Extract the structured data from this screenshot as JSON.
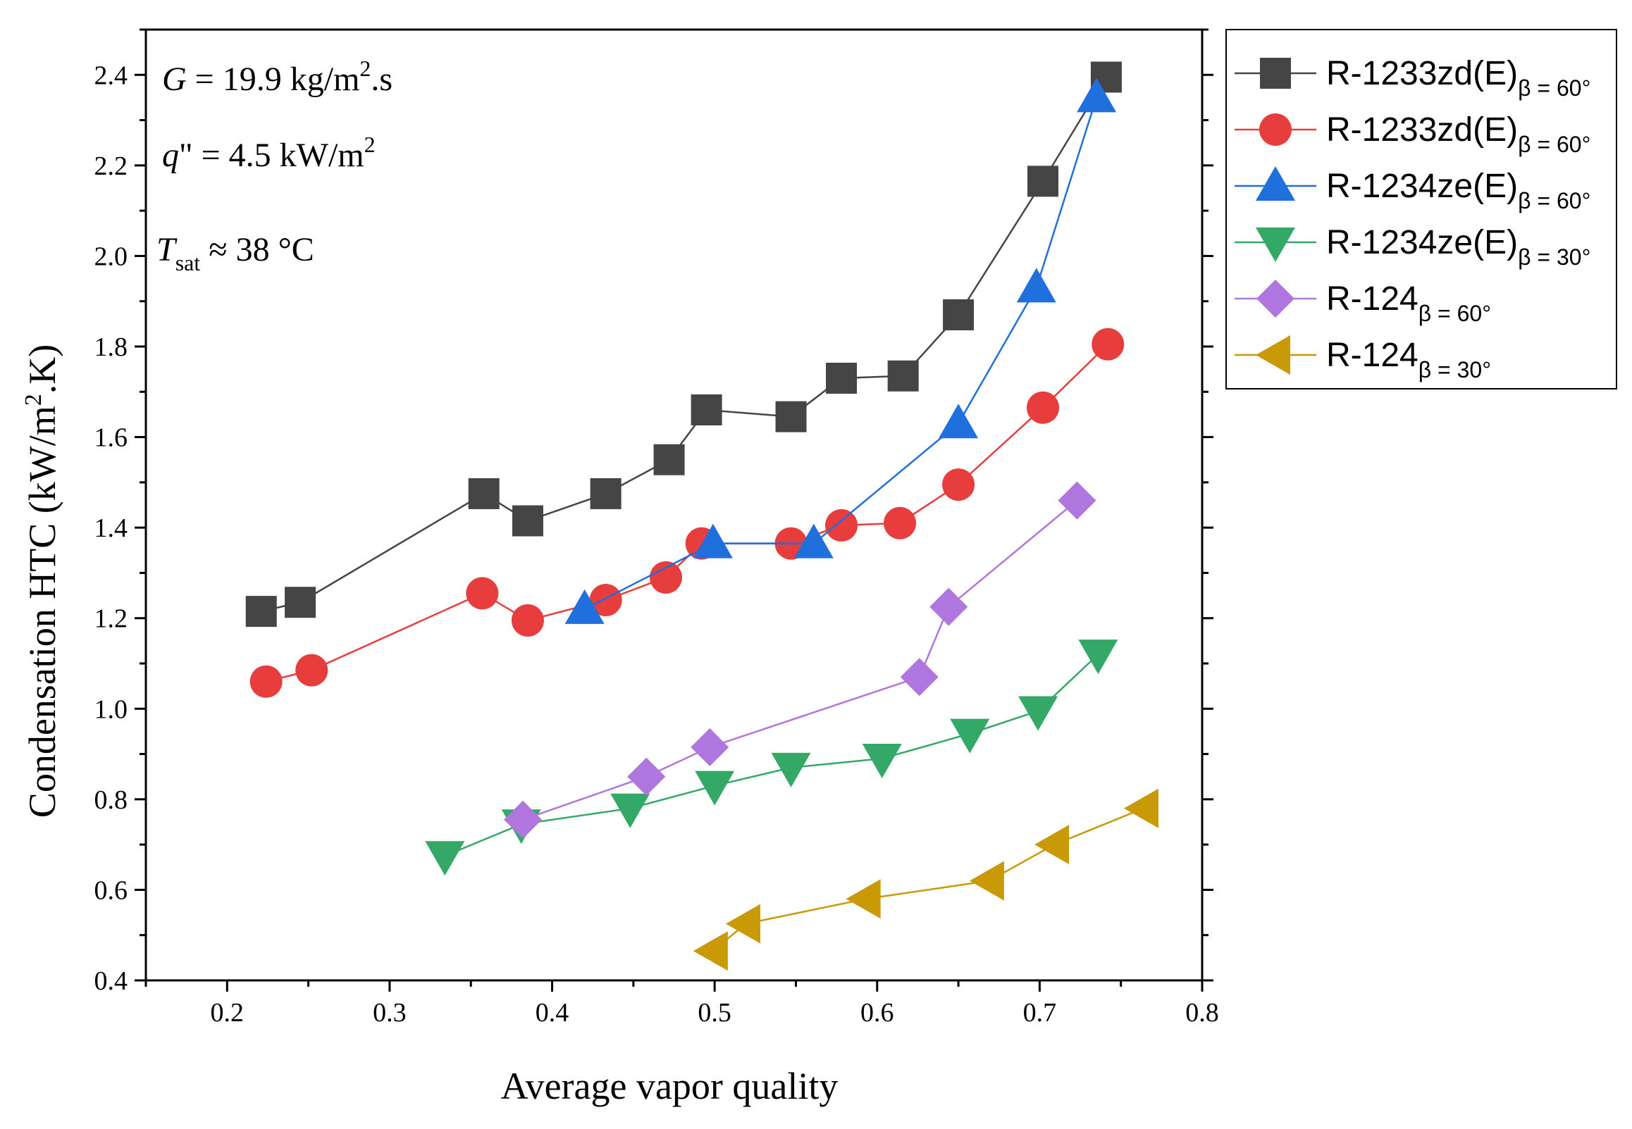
{
  "chart_data": {
    "type": "line",
    "xlabel": "Average vapor quality",
    "ylabel": "Condensation HTC (kW/m",
    "ylabel_sup": "2",
    "ylabel_end": ".K)",
    "xlim": [
      0.15,
      0.8
    ],
    "ylim": [
      0.4,
      2.5
    ],
    "xticks": [
      "0.2",
      "0.3",
      "0.4",
      "0.5",
      "0.6",
      "0.7",
      "0.8"
    ],
    "yticks": [
      "0.4",
      "0.6",
      "0.8",
      "1.0",
      "1.2",
      "1.4",
      "1.6",
      "1.8",
      "2.0",
      "2.2",
      "2.4"
    ],
    "annotations": {
      "g_var": "G",
      "g_rest": " = 19.9 kg/m",
      "g_sup": "2",
      "g_end": ".s",
      "q_var": "q",
      "q_rest": "\" = 4.5 kW/m",
      "q_sup": "2",
      "t_var": "T",
      "t_sub": "sat",
      "t_rest": " ≈ 38  °C"
    },
    "series": [
      {
        "name": "R-1233zd(E)",
        "sub": "β = 60°",
        "color": "#454545",
        "marker": "square",
        "x": [
          0.221,
          0.245,
          0.358,
          0.385,
          0.433,
          0.472,
          0.495,
          0.547,
          0.578,
          0.616,
          0.65,
          0.702,
          0.741
        ],
        "y": [
          1.215,
          1.235,
          1.475,
          1.415,
          1.475,
          1.55,
          1.66,
          1.645,
          1.73,
          1.735,
          1.87,
          2.165,
          2.395
        ]
      },
      {
        "name": "R-1233zd(E)",
        "sub": "β = 60°",
        "color": "#e83d3d",
        "marker": "circle",
        "x": [
          0.224,
          0.252,
          0.357,
          0.385,
          0.433,
          0.47,
          0.492,
          0.547,
          0.578,
          0.614,
          0.65,
          0.702,
          0.742
        ],
        "y": [
          1.06,
          1.085,
          1.255,
          1.195,
          1.24,
          1.29,
          1.365,
          1.365,
          1.405,
          1.41,
          1.495,
          1.665,
          1.805
        ]
      },
      {
        "name": "R-1234ze(E)",
        "sub": "β = 60°",
        "color": "#1f6fdc",
        "marker": "triangle-up",
        "x": [
          0.42,
          0.499,
          0.561,
          0.65,
          0.698,
          0.735
        ],
        "y": [
          1.22,
          1.365,
          1.365,
          1.63,
          1.93,
          2.35
        ]
      },
      {
        "name": "R-1234ze(E)",
        "sub": "β = 30°",
        "color": "#34a866",
        "marker": "triangle-down",
        "x": [
          0.334,
          0.381,
          0.448,
          0.5,
          0.547,
          0.603,
          0.657,
          0.699,
          0.736
        ],
        "y": [
          0.675,
          0.745,
          0.78,
          0.83,
          0.87,
          0.89,
          0.945,
          0.995,
          1.12
        ]
      },
      {
        "name": "R-124",
        "sub": "β = 60°",
        "color": "#b076e0",
        "marker": "diamond",
        "x": [
          0.382,
          0.458,
          0.497,
          0.626,
          0.644,
          0.723
        ],
        "y": [
          0.755,
          0.85,
          0.915,
          1.07,
          1.225,
          1.46
        ]
      },
      {
        "name": "R-124",
        "sub": "β = 30°",
        "color": "#c99a06",
        "marker": "triangle-left",
        "x": [
          0.499,
          0.519,
          0.593,
          0.669,
          0.709,
          0.764
        ],
        "y": [
          0.465,
          0.525,
          0.58,
          0.62,
          0.7,
          0.78
        ]
      }
    ]
  }
}
